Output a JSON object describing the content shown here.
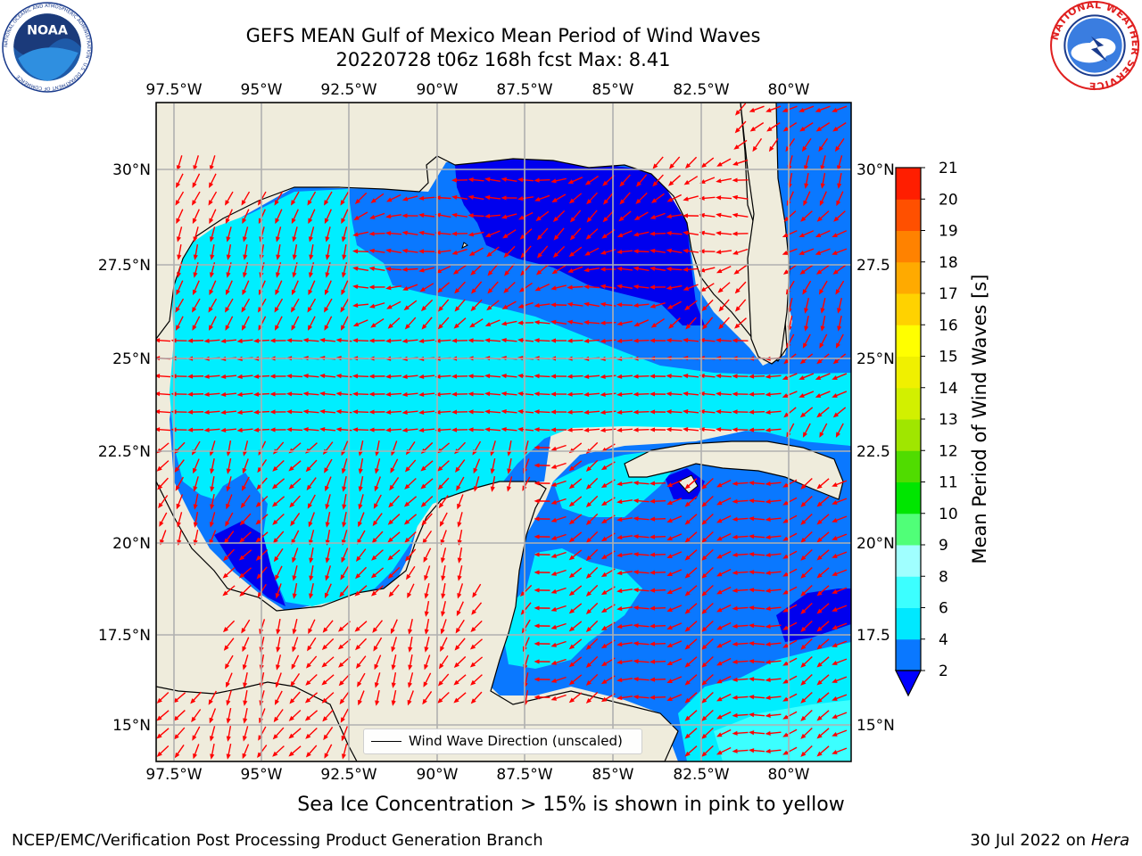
{
  "header": {
    "title_line1": "GEFS MEAN Gulf of Mexico Mean Period of Wind Waves",
    "title_line2": "20220728 t06z 168h fcst   Max: 8.41"
  },
  "logos": {
    "left": {
      "name": "noaa-logo",
      "text": "NOAA",
      "ring_text": "NATIONAL OCEANIC AND ATMOSPHERIC ADMINISTRATION · U.S. DEPARTMENT OF COMMERCE"
    },
    "right": {
      "name": "nws-logo",
      "ring_text": "NATIONAL WEATHER SERVICE"
    }
  },
  "map": {
    "lon_ticks": [
      "97.5°W",
      "95°W",
      "92.5°W",
      "90°W",
      "87.5°W",
      "85°W",
      "82.5°W",
      "80°W"
    ],
    "lat_ticks_left": [
      "30°N",
      "27.5°N",
      "25°N",
      "22.5°N",
      "20°N",
      "17.5°N",
      "15°N"
    ],
    "lat_ticks_right": [
      "30°N",
      "27.5",
      "25°N",
      "22.5",
      "20°N",
      "17.5",
      "15°N"
    ],
    "land_color": "#efecdc",
    "grid_color": "#b0b0b0",
    "arrow_color": "#ff0000"
  },
  "colorbar": {
    "title": "Mean Period of Wind Waves [s]",
    "tick_labels": [
      "2",
      "4",
      "6",
      "8",
      "9",
      "10",
      "11",
      "12",
      "13",
      "14",
      "15",
      "16",
      "17",
      "18",
      "19",
      "20",
      "21"
    ],
    "colors": [
      "#0a78ff",
      "#00e8ff",
      "#3cffff",
      "#a0ffff",
      "#50ff78",
      "#00e600",
      "#50dc00",
      "#a0e600",
      "#d2f000",
      "#f0f000",
      "#ffff00",
      "#ffd200",
      "#ffaa00",
      "#ff8200",
      "#ff5000",
      "#ff1e00",
      "#ff0000"
    ],
    "extend_color": "#0000ff"
  },
  "legend": {
    "label": "Wind Wave Direction (unscaled)"
  },
  "note": "Sea Ice Concentration > 15% is shown in pink to yellow",
  "footer": {
    "left": "NCEP/EMC/Verification Post Processing Product Generation Branch",
    "right_prefix": "30 Jul 2022 on ",
    "right_machine": "Hera"
  }
}
